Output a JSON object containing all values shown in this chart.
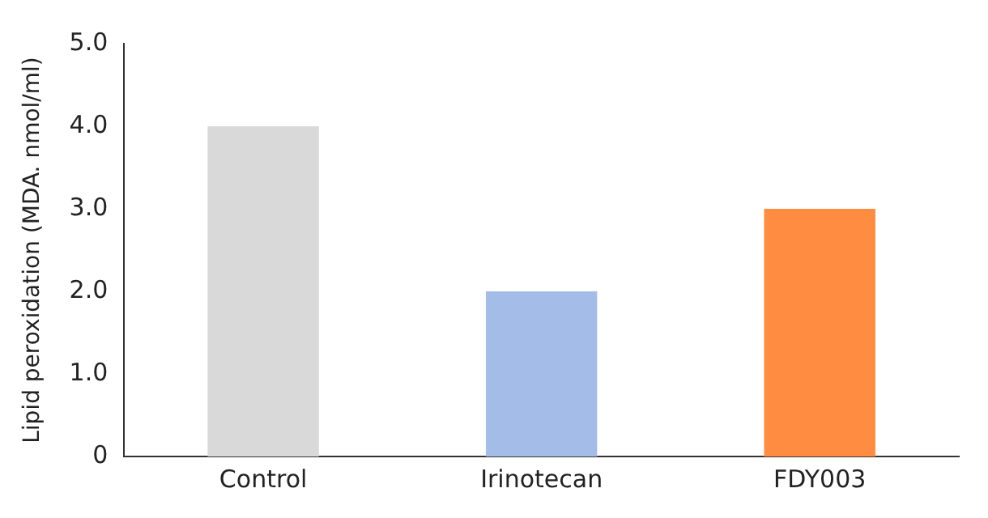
{
  "chart_data": {
    "type": "bar",
    "ylabel": "Lipid peroxidation (MDA. nmol/ml)",
    "categories": [
      "Control",
      "Irinotecan",
      "FDY003"
    ],
    "values": [
      4.0,
      2.0,
      3.0
    ],
    "colors": [
      "#d9d9d9",
      "#a4bde8",
      "#ff8c40"
    ],
    "ylim": [
      0,
      5
    ],
    "yticks": [
      0,
      {
        "value": 1,
        "label": "1.0"
      },
      {
        "value": 2,
        "label": "2.0"
      },
      {
        "value": 3,
        "label": "3.0"
      },
      {
        "value": 4,
        "label": "4.0"
      },
      {
        "value": 5,
        "label": "5.0"
      }
    ],
    "grid": false,
    "legend": false
  }
}
